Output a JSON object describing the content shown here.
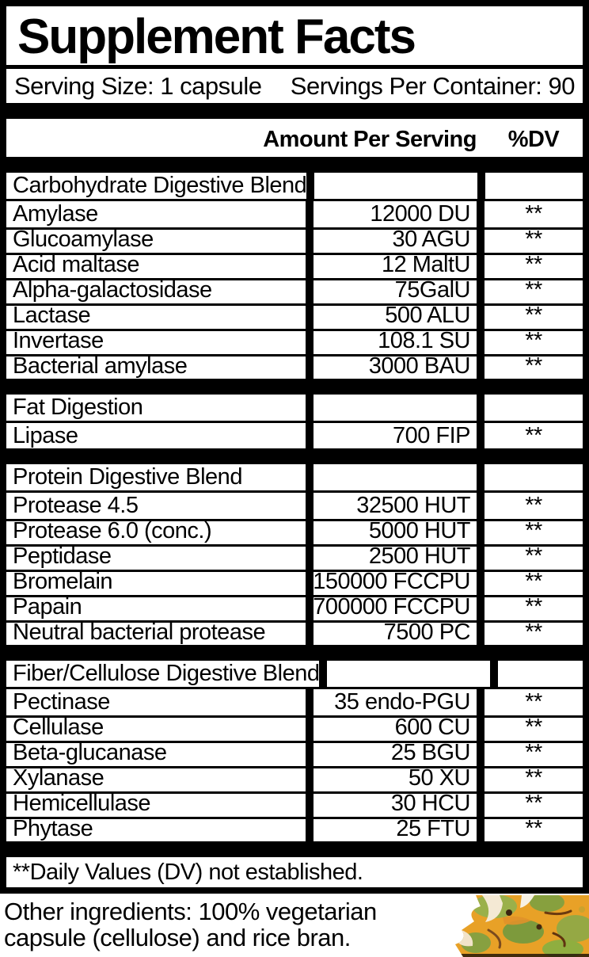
{
  "panel": {
    "title": "Supplement Facts",
    "serving_size": "Serving Size: 1 capsule",
    "servings_per_container": "Servings Per Container: 90",
    "amount_header": "Amount Per Serving",
    "dv_header": "%DV",
    "sections": [
      {
        "name": "Carbohydrate Digestive Blend",
        "rows": [
          {
            "ingredient": "Amylase",
            "amount": "12000 DU",
            "dv": "**"
          },
          {
            "ingredient": "Glucoamylase",
            "amount": "30 AGU",
            "dv": "**"
          },
          {
            "ingredient": "Acid maltase",
            "amount": "12 MaltU",
            "dv": "**"
          },
          {
            "ingredient": "Alpha-galactosidase",
            "amount": "75GalU",
            "dv": "**"
          },
          {
            "ingredient": "Lactase",
            "amount": "500 ALU",
            "dv": "**"
          },
          {
            "ingredient": "Invertase",
            "amount": "108.1 SU",
            "dv": "**"
          },
          {
            "ingredient": "Bacterial amylase",
            "amount": "3000 BAU",
            "dv": "**"
          }
        ]
      },
      {
        "name": "Fat Digestion",
        "rows": [
          {
            "ingredient": "Lipase",
            "amount": "700 FIP",
            "dv": "**"
          }
        ]
      },
      {
        "name": "Protein Digestive Blend",
        "rows": [
          {
            "ingredient": "Protease 4.5",
            "amount": "32500 HUT",
            "dv": "**"
          },
          {
            "ingredient": "Protease 6.0 (conc.)",
            "amount": "5000 HUT",
            "dv": "**"
          },
          {
            "ingredient": "Peptidase",
            "amount": "2500 HUT",
            "dv": "**"
          },
          {
            "ingredient": "Bromelain",
            "amount": "150000 FCCPU",
            "dv": "**"
          },
          {
            "ingredient": "Papain",
            "amount": "700000 FCCPU",
            "dv": "**"
          },
          {
            "ingredient": "Neutral bacterial protease",
            "amount": "7500 PC",
            "dv": "**"
          }
        ]
      },
      {
        "name": "Fiber/Cellulose Digestive Blend",
        "rows": [
          {
            "ingredient": "Pectinase",
            "amount": "35 endo-PGU",
            "dv": "**"
          },
          {
            "ingredient": "Cellulase",
            "amount": "600 CU",
            "dv": "**"
          },
          {
            "ingredient": "Beta-glucanase",
            "amount": "25 BGU",
            "dv": "**"
          },
          {
            "ingredient": "Xylanase",
            "amount": "50 XU",
            "dv": "**"
          },
          {
            "ingredient": "Hemicellulase",
            "amount": "30 HCU",
            "dv": "**"
          },
          {
            "ingredient": "Phytase",
            "amount": "25 FTU",
            "dv": "**"
          }
        ]
      }
    ],
    "footnote": "**Daily Values (DV) not established."
  },
  "other_ingredients": "Other ingredients: 100% vegetarian capsule (cellulose) and rice bran.",
  "decoration": {
    "name": "pineapple-photo"
  },
  "colors": {
    "ink": "#000000",
    "paper": "#ffffff",
    "pineapple_orange": "#e8a127",
    "pineapple_green": "#8aa63f",
    "pineapple_brown": "#6b3a10",
    "pineapple_cream": "#f4e9d4"
  }
}
